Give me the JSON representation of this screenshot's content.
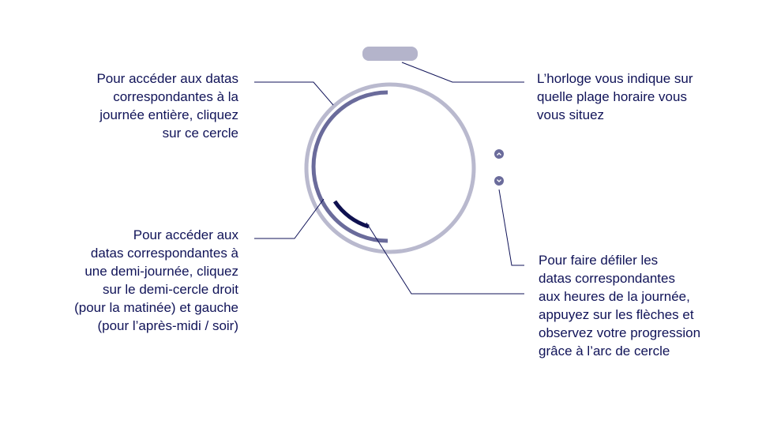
{
  "annotations": {
    "full_day": "Pour accéder aux datas\ncorrespondantes à la\njournée entière, cliquez\nsur ce cercle",
    "half_day": "Pour accéder aux\ndatas correspondantes à\nune demi-journée, cliquez\nsur le demi-cercle droit\n(pour la matinée) et gauche\n(pour l’après-midi / soir)",
    "clock": "L’horloge vous indique sur\nquelle plage horaire vous\nvous situez",
    "arrows": "Pour faire défiler les\ndatas correspondantes\naux heures de la journée,\nappuyez sur les flèches et\nobservez votre progression\ngrâce à l’arc de cercle"
  },
  "colors": {
    "text": "#101358",
    "outer_ring": "#b9b9ce",
    "half_arc": "#6a6b9b",
    "progress_arc": "#0f1150",
    "leader_line": "#101358",
    "clock_pill": "#b4b4cb",
    "arrow_button": "#6a6b9b"
  },
  "icons": {
    "up": "chevron-up-icon",
    "down": "chevron-down-icon"
  }
}
